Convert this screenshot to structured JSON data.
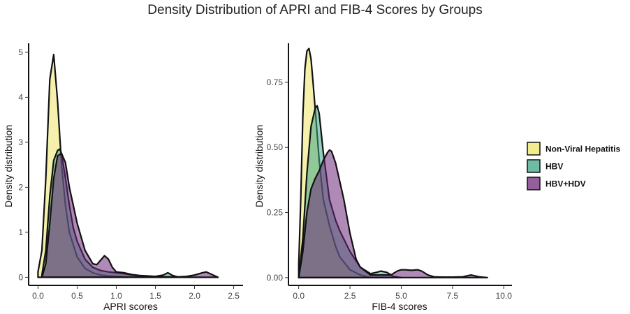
{
  "title": "Density Distribution of APRI and FIB-4 Scores by Groups",
  "colors": {
    "Non-Viral Hepatitis": "#ede56a",
    "HBV": "#3ea585",
    "HBV+HDV": "#6d2a7a"
  },
  "legend": {
    "position": "right",
    "items": [
      "Non-Viral Hepatitis",
      "HBV",
      "HBV+HDV"
    ]
  },
  "chart_data": [
    {
      "type": "area",
      "subtype": "density",
      "xlabel": "APRI scores",
      "ylabel": "Density distribution",
      "xlim": [
        -0.12,
        2.62
      ],
      "ylim": [
        -0.18,
        5.2
      ],
      "xticks": [
        0.0,
        0.5,
        1.0,
        1.5,
        2.0,
        2.5
      ],
      "xtick_labels": [
        "0.0",
        "0.5",
        "1.0",
        "1.5",
        "2.0",
        "2.5"
      ],
      "yticks": [
        0,
        1,
        2,
        3,
        4,
        5
      ],
      "ytick_labels": [
        "0",
        "1",
        "2",
        "3",
        "4",
        "5"
      ],
      "grid": false,
      "series": [
        {
          "name": "Non-Viral Hepatitis",
          "x": [
            0.0,
            0.05,
            0.1,
            0.15,
            0.2,
            0.25,
            0.3,
            0.35,
            0.4,
            0.5,
            0.6,
            0.7,
            0.8,
            0.9,
            1.0,
            1.2,
            1.4
          ],
          "y": [
            0.12,
            0.6,
            2.2,
            4.4,
            4.95,
            3.9,
            2.5,
            1.6,
            1.0,
            0.45,
            0.2,
            0.1,
            0.05,
            0.03,
            0.02,
            0.0,
            0.0
          ]
        },
        {
          "name": "HBV",
          "x": [
            0.05,
            0.1,
            0.15,
            0.2,
            0.25,
            0.28,
            0.3,
            0.35,
            0.4,
            0.45,
            0.5,
            0.6,
            0.7,
            0.8,
            0.9,
            1.0,
            1.1,
            1.2,
            1.3,
            1.4,
            1.5,
            1.6,
            1.66,
            1.72,
            1.8
          ],
          "y": [
            0.05,
            0.6,
            1.8,
            2.6,
            2.82,
            2.85,
            2.75,
            2.2,
            1.6,
            1.1,
            0.8,
            0.4,
            0.22,
            0.15,
            0.12,
            0.1,
            0.08,
            0.05,
            0.03,
            0.02,
            0.02,
            0.05,
            0.1,
            0.04,
            0.0
          ]
        },
        {
          "name": "HBV+HDV",
          "x": [
            0.05,
            0.1,
            0.15,
            0.2,
            0.25,
            0.3,
            0.35,
            0.4,
            0.5,
            0.6,
            0.7,
            0.75,
            0.8,
            0.85,
            0.9,
            0.95,
            1.0,
            1.1,
            1.2,
            1.3,
            1.4,
            1.5,
            1.6,
            1.7,
            1.8,
            1.9,
            2.0,
            2.1,
            2.15,
            2.2,
            2.3
          ],
          "y": [
            0.0,
            0.3,
            1.2,
            2.2,
            2.7,
            2.75,
            2.55,
            2.0,
            1.2,
            0.6,
            0.3,
            0.28,
            0.38,
            0.48,
            0.4,
            0.22,
            0.12,
            0.1,
            0.06,
            0.04,
            0.03,
            0.02,
            0.01,
            0.01,
            0.01,
            0.02,
            0.05,
            0.1,
            0.12,
            0.08,
            0.0
          ]
        }
      ]
    },
    {
      "type": "area",
      "subtype": "density",
      "xlabel": "FIB-4 scores",
      "ylabel": "Density distribution",
      "xlim": [
        -0.5,
        10.4
      ],
      "ylim": [
        -0.03,
        0.9
      ],
      "xticks": [
        0.0,
        2.5,
        5.0,
        7.5,
        10.0
      ],
      "xtick_labels": [
        "0.0",
        "2.5",
        "5.0",
        "7.5",
        "10.0"
      ],
      "yticks": [
        0.0,
        0.25,
        0.5,
        0.75
      ],
      "ytick_labels": [
        "0.00",
        "0.25",
        "0.50",
        "0.75"
      ],
      "grid": false,
      "series": [
        {
          "name": "Non-Viral Hepatitis",
          "x": [
            0.0,
            0.1,
            0.2,
            0.3,
            0.4,
            0.5,
            0.6,
            0.7,
            0.8,
            0.9,
            1.0,
            1.2,
            1.5,
            1.8,
            2.0,
            2.5,
            3.0,
            3.5
          ],
          "y": [
            0.05,
            0.3,
            0.62,
            0.8,
            0.87,
            0.88,
            0.84,
            0.75,
            0.65,
            0.55,
            0.45,
            0.3,
            0.2,
            0.12,
            0.08,
            0.03,
            0.01,
            0.0
          ]
        },
        {
          "name": "HBV",
          "x": [
            0.0,
            0.2,
            0.4,
            0.6,
            0.8,
            0.9,
            1.0,
            1.2,
            1.5,
            1.8,
            2.0,
            2.5,
            3.0,
            3.5,
            3.8,
            4.0,
            4.3,
            4.6,
            5.0
          ],
          "y": [
            0.0,
            0.15,
            0.4,
            0.58,
            0.65,
            0.66,
            0.63,
            0.48,
            0.3,
            0.22,
            0.18,
            0.1,
            0.04,
            0.015,
            0.02,
            0.025,
            0.02,
            0.005,
            0.0
          ]
        },
        {
          "name": "HBV+HDV",
          "x": [
            0.0,
            0.2,
            0.4,
            0.6,
            0.8,
            1.0,
            1.2,
            1.4,
            1.5,
            1.6,
            1.8,
            2.0,
            2.2,
            2.5,
            2.8,
            3.0,
            3.5,
            4.0,
            4.5,
            4.8,
            5.0,
            5.2,
            5.5,
            5.8,
            6.0,
            6.3,
            6.6,
            7.0,
            7.5,
            8.0,
            8.4,
            8.8,
            9.2
          ],
          "y": [
            0.0,
            0.1,
            0.25,
            0.34,
            0.38,
            0.41,
            0.45,
            0.48,
            0.49,
            0.485,
            0.44,
            0.37,
            0.3,
            0.17,
            0.07,
            0.04,
            0.01,
            0.01,
            0.01,
            0.025,
            0.03,
            0.03,
            0.028,
            0.03,
            0.025,
            0.01,
            0.003,
            0.002,
            0.002,
            0.003,
            0.01,
            0.003,
            0.0
          ]
        }
      ]
    }
  ]
}
